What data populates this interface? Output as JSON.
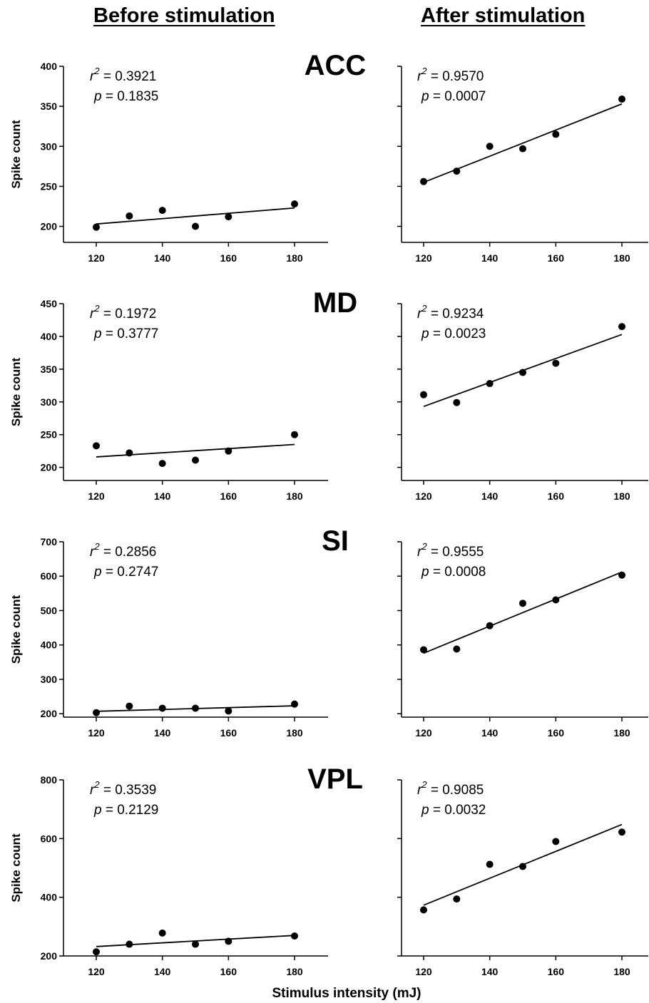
{
  "headers": {
    "before": "Before stimulation",
    "after": "After stimulation"
  },
  "xlabel": "Stimulus intensity (mJ)",
  "ylabel": "Spike count",
  "chart_data": [
    {
      "type": "scatter",
      "region": "ACC",
      "condition": "before",
      "x": [
        120,
        130,
        140,
        150,
        160,
        180
      ],
      "y": [
        199,
        213,
        220,
        200,
        212,
        228
      ],
      "fit": {
        "x": [
          120,
          180
        ],
        "y": [
          203,
          223
        ]
      },
      "xticks": [
        120,
        140,
        160,
        180
      ],
      "yticks": [
        200,
        250,
        300,
        350,
        400
      ],
      "ylim": [
        180,
        400
      ],
      "r2": "0.3921",
      "p": "0.1835"
    },
    {
      "type": "scatter",
      "region": "ACC",
      "condition": "after",
      "x": [
        120,
        130,
        140,
        150,
        160,
        180
      ],
      "y": [
        256,
        269,
        300,
        297,
        315,
        359
      ],
      "fit": {
        "x": [
          120,
          180
        ],
        "y": [
          255,
          353
        ]
      },
      "xticks": [
        120,
        140,
        160,
        180
      ],
      "yticks": [
        200,
        250,
        300,
        350,
        400
      ],
      "ylim": [
        180,
        400
      ],
      "r2": "0.9570",
      "p": "0.0007"
    },
    {
      "type": "scatter",
      "region": "MD",
      "condition": "before",
      "x": [
        120,
        130,
        140,
        150,
        160,
        180
      ],
      "y": [
        233,
        222,
        206,
        211,
        225,
        250
      ],
      "fit": {
        "x": [
          120,
          180
        ],
        "y": [
          216,
          235
        ]
      },
      "xticks": [
        120,
        140,
        160,
        180
      ],
      "yticks": [
        200,
        250,
        300,
        350,
        400,
        450
      ],
      "ylim": [
        180,
        450
      ],
      "r2": "0.1972",
      "p": "0.3777"
    },
    {
      "type": "scatter",
      "region": "MD",
      "condition": "after",
      "x": [
        120,
        130,
        140,
        150,
        160,
        180
      ],
      "y": [
        311,
        299,
        328,
        345,
        359,
        415
      ],
      "fit": {
        "x": [
          120,
          180
        ],
        "y": [
          293,
          403
        ]
      },
      "xticks": [
        120,
        140,
        160,
        180
      ],
      "yticks": [
        200,
        250,
        300,
        350,
        400,
        450
      ],
      "ylim": [
        180,
        450
      ],
      "r2": "0.9234",
      "p": "0.0023"
    },
    {
      "type": "scatter",
      "region": "SI",
      "condition": "before",
      "x": [
        120,
        130,
        140,
        150,
        160,
        180
      ],
      "y": [
        203,
        222,
        216,
        216,
        208,
        228
      ],
      "fit": {
        "x": [
          120,
          180
        ],
        "y": [
          207,
          223
        ]
      },
      "xticks": [
        120,
        140,
        160,
        180
      ],
      "yticks": [
        200,
        300,
        400,
        500,
        600,
        700
      ],
      "ylim": [
        190,
        700
      ],
      "r2": "0.2856",
      "p": "0.2747"
    },
    {
      "type": "scatter",
      "region": "SI",
      "condition": "after",
      "x": [
        120,
        130,
        140,
        150,
        160,
        180
      ],
      "y": [
        386,
        388,
        456,
        521,
        531,
        603
      ],
      "fit": {
        "x": [
          120,
          180
        ],
        "y": [
          376,
          612
        ]
      },
      "xticks": [
        120,
        140,
        160,
        180
      ],
      "yticks": [
        200,
        300,
        400,
        500,
        600,
        700
      ],
      "ylim": [
        190,
        700
      ],
      "r2": "0.9555",
      "p": "0.0008"
    },
    {
      "type": "scatter",
      "region": "VPL",
      "condition": "before",
      "x": [
        120,
        130,
        140,
        150,
        160,
        180
      ],
      "y": [
        214,
        240,
        278,
        240,
        250,
        268
      ],
      "fit": {
        "x": [
          120,
          180
        ],
        "y": [
          232,
          270
        ]
      },
      "xticks": [
        120,
        140,
        160,
        180
      ],
      "yticks": [
        200,
        400,
        600,
        800
      ],
      "ylim": [
        200,
        800
      ],
      "r2": "0.3539",
      "p": "0.2129"
    },
    {
      "type": "scatter",
      "region": "VPL",
      "condition": "after",
      "x": [
        120,
        130,
        140,
        150,
        160,
        180
      ],
      "y": [
        357,
        394,
        512,
        505,
        590,
        622
      ],
      "fit": {
        "x": [
          120,
          180
        ],
        "y": [
          373,
          648
        ]
      },
      "xticks": [
        120,
        140,
        160,
        180
      ],
      "yticks": [
        200,
        400,
        600,
        800
      ],
      "ylim": [
        200,
        800
      ],
      "r2": "0.9085",
      "p": "0.0032"
    }
  ]
}
